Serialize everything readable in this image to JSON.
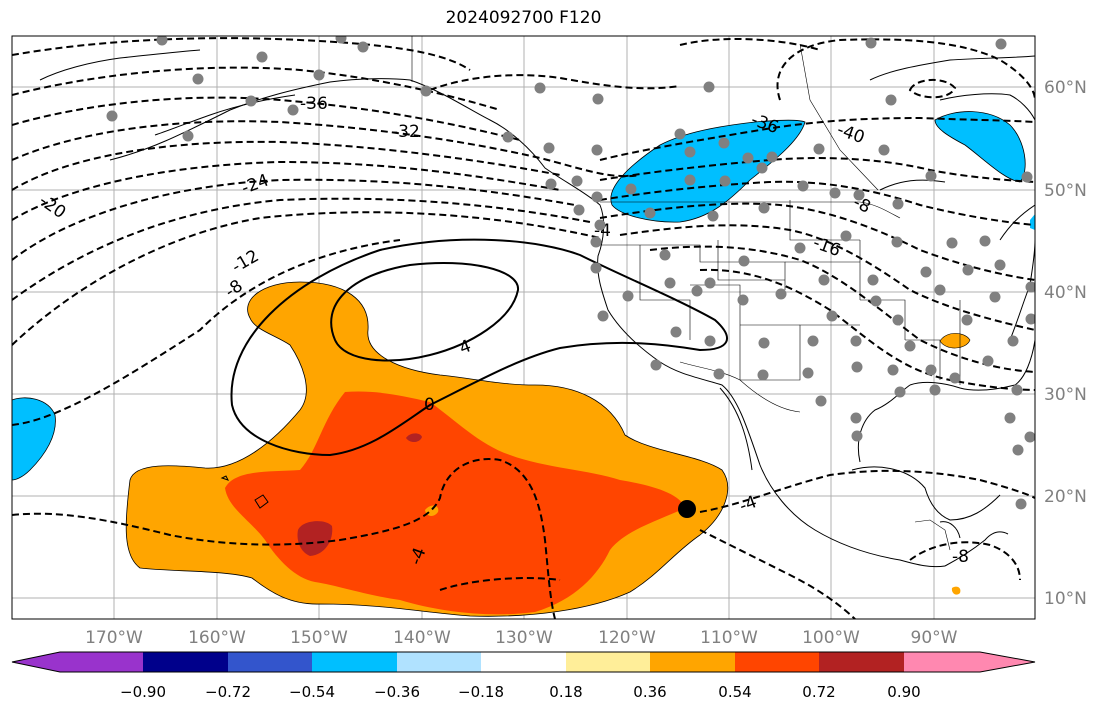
{
  "title": "2024092700 F120",
  "lon_labels": [
    "170°W",
    "160°W",
    "150°W",
    "140°W",
    "130°W",
    "120°W",
    "110°W",
    "100°W",
    "90°W"
  ],
  "lat_labels": [
    "60°N",
    "50°N",
    "40°N",
    "30°N",
    "20°N",
    "10°N"
  ],
  "contour_labels": [
    "-36",
    "-32",
    "-24",
    "-20",
    "-12",
    "-8",
    "-4",
    "-16",
    "-8",
    "-36",
    "-40",
    "4",
    "0",
    "-4",
    "-4",
    "-8"
  ],
  "colorbar": {
    "colors": [
      "#9933cc",
      "#00008b",
      "#3355cc",
      "#00bfff",
      "#b0e2ff",
      "#ffffff",
      "#ffee99",
      "#ffa500",
      "#ff4500",
      "#b22222",
      "#ff88b0"
    ],
    "tick_labels": [
      "−0.90",
      "−0.72",
      "−0.54",
      "−0.36",
      "−0.18",
      "0.18",
      "0.36",
      "0.54",
      "0.72",
      "0.90"
    ]
  },
  "colors": {
    "map_line": "#000000",
    "gridline": "#b0b0b0",
    "station_dot": "#808080",
    "axis_label": "#808080"
  },
  "marker": "black-dot"
}
